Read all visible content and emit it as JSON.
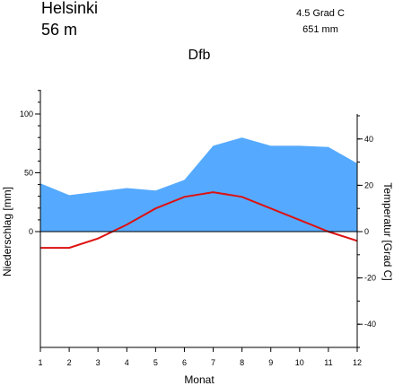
{
  "header": {
    "station": "Helsinki",
    "elevation": "56  m",
    "mean_temperature": "4.5 Grad C",
    "annual_precipitation": "651 mm",
    "climate_class": "Dfb"
  },
  "colors": {
    "precipitation_fill": "#55aaff",
    "temperature_line": "#dd1111",
    "axis": "#000000"
  },
  "chart_data": {
    "type": "area",
    "title": "Dfb",
    "xlabel": "Monat",
    "ylabel_left": "Niederschlag [mm]",
    "ylabel_right": "Temperatur [Grad C]",
    "x": [
      1,
      2,
      3,
      4,
      5,
      6,
      7,
      8,
      9,
      10,
      11,
      12
    ],
    "x_ticks": [
      "1",
      "2",
      "3",
      "4",
      "5",
      "6",
      "7",
      "8",
      "9",
      "10",
      "11",
      "12"
    ],
    "y_left_ticks": [
      {
        "value": 0,
        "label": "0"
      },
      {
        "value": 50,
        "label": "50"
      },
      {
        "value": 100,
        "label": "100"
      }
    ],
    "y_left_range": [
      -100,
      120
    ],
    "y_right_ticks": [
      {
        "value": -40,
        "label": "-40"
      },
      {
        "value": -20,
        "label": "-20"
      },
      {
        "value": 0,
        "label": "0"
      },
      {
        "value": 20,
        "label": "20"
      },
      {
        "value": 40,
        "label": "40"
      }
    ],
    "y_right_range": [
      -50,
      50
    ],
    "series": [
      {
        "axis": "left",
        "kind": "area",
        "values": [
          41,
          31,
          34,
          37,
          35,
          44,
          73,
          80,
          73,
          73,
          72,
          58
        ]
      },
      {
        "axis": "right",
        "kind": "line",
        "values": [
          -7,
          -7,
          -3,
          3,
          10,
          15,
          17,
          15,
          10,
          5,
          0,
          -4
        ]
      }
    ],
    "grid": false
  }
}
